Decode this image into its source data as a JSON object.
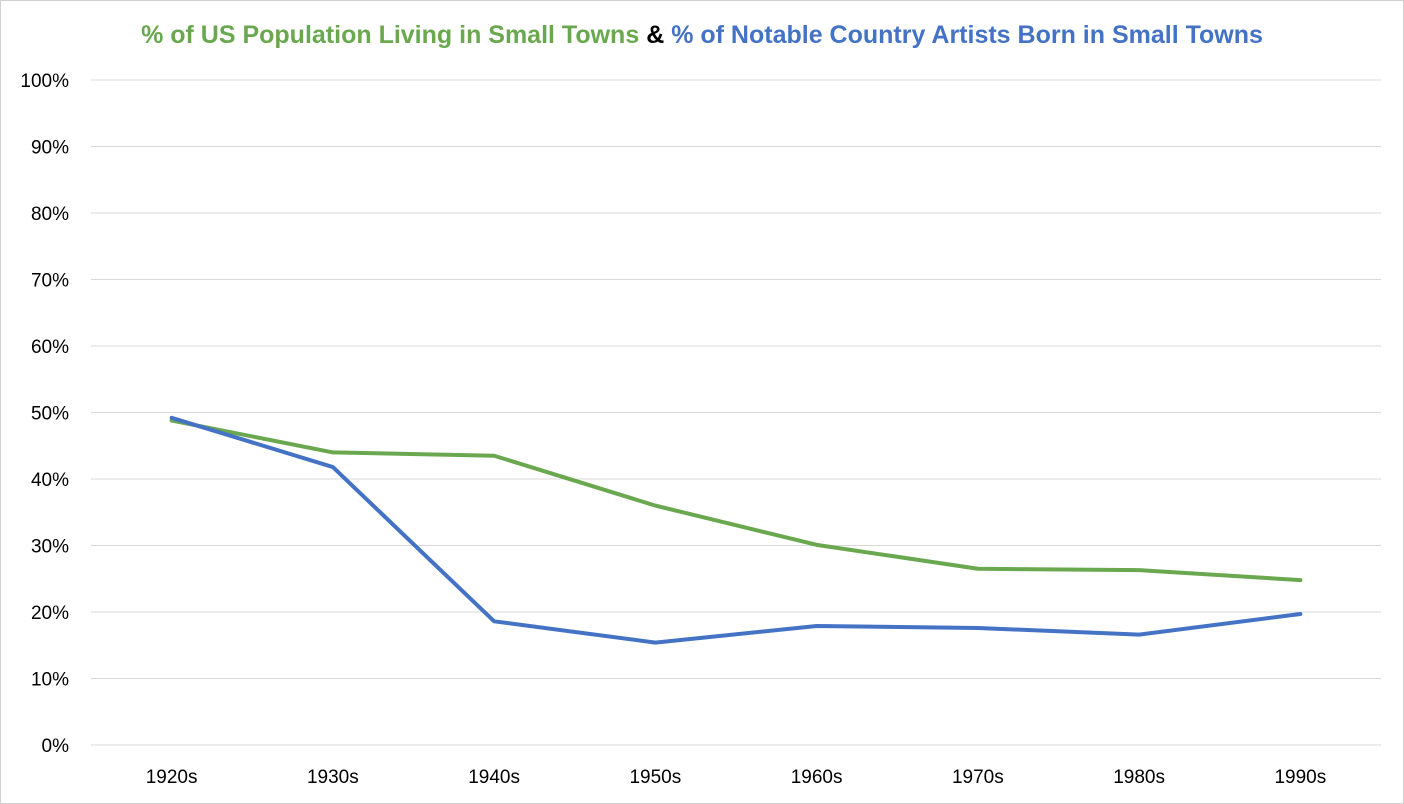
{
  "chart_data": {
    "type": "line",
    "title_parts": [
      {
        "text": "% of US Population Living in Small Towns",
        "color": "#6aa84f"
      },
      {
        "text": " & ",
        "color": "#000000"
      },
      {
        "text": "% of Notable Country Artists Born in Small Towns",
        "color": "#4472c4"
      }
    ],
    "categories": [
      "1920s",
      "1930s",
      "1940s",
      "1950s",
      "1960s",
      "1970s",
      "1980s",
      "1990s"
    ],
    "series": [
      {
        "color": "#6aa84f",
        "values": [
          48.8,
          44.0,
          43.5,
          36.0,
          30.1,
          26.5,
          26.3,
          24.8
        ]
      },
      {
        "color": "#4472c4",
        "values": [
          49.2,
          41.8,
          18.6,
          15.4,
          17.9,
          17.6,
          16.6,
          19.7
        ]
      }
    ],
    "ylim": [
      0,
      100
    ],
    "yticks": [
      "0%",
      "10%",
      "20%",
      "30%",
      "40%",
      "50%",
      "60%",
      "70%",
      "80%",
      "90%",
      "100%"
    ],
    "grid": true,
    "legend": "none"
  }
}
